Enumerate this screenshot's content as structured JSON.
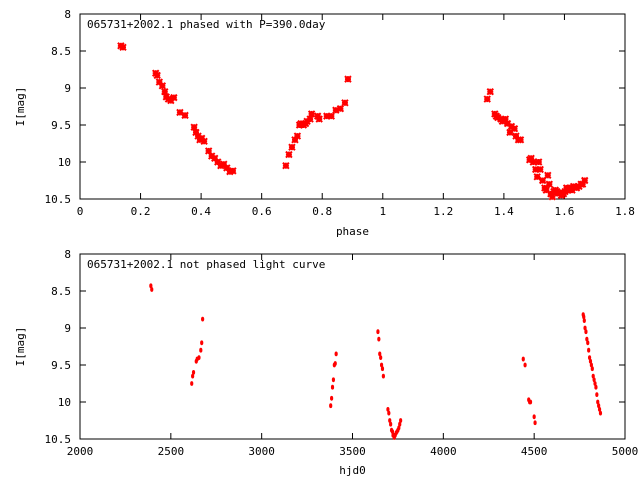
{
  "colors": {
    "points": "#ff0000",
    "axes": "#000000",
    "background": "#ffffff"
  },
  "chart_data": [
    {
      "type": "scatter",
      "title": "065731+2002.1 phased with P=390.0day",
      "xlabel": "phase",
      "ylabel": "I[mag]",
      "xlim": [
        0,
        1.8
      ],
      "ylim": [
        8,
        10.5
      ],
      "y_inverted": true,
      "grid": false,
      "marker": "cross",
      "xticks": [
        "0",
        "0.2",
        "0.4",
        "0.6",
        "0.8",
        "1",
        "1.2",
        "1.4",
        "1.6",
        "1.8"
      ],
      "yticks": [
        "8",
        "8.5",
        "9",
        "9.5",
        "10",
        "10.5"
      ],
      "points": [
        [
          0.135,
          8.43
        ],
        [
          0.142,
          8.45
        ],
        [
          0.25,
          8.8
        ],
        [
          0.255,
          8.83
        ],
        [
          0.262,
          8.92
        ],
        [
          0.272,
          8.97
        ],
        [
          0.28,
          9.05
        ],
        [
          0.285,
          9.12
        ],
        [
          0.292,
          9.15
        ],
        [
          0.3,
          9.17
        ],
        [
          0.31,
          9.13
        ],
        [
          0.33,
          9.33
        ],
        [
          0.347,
          9.37
        ],
        [
          0.377,
          9.53
        ],
        [
          0.383,
          9.6
        ],
        [
          0.39,
          9.65
        ],
        [
          0.396,
          9.7
        ],
        [
          0.402,
          9.68
        ],
        [
          0.41,
          9.72
        ],
        [
          0.425,
          9.85
        ],
        [
          0.435,
          9.92
        ],
        [
          0.445,
          9.95
        ],
        [
          0.455,
          10.0
        ],
        [
          0.465,
          10.05
        ],
        [
          0.475,
          10.03
        ],
        [
          0.485,
          10.08
        ],
        [
          0.495,
          10.13
        ],
        [
          0.505,
          10.12
        ],
        [
          0.68,
          10.05
        ],
        [
          0.69,
          9.9
        ],
        [
          0.7,
          9.8
        ],
        [
          0.71,
          9.7
        ],
        [
          0.718,
          9.65
        ],
        [
          0.725,
          9.5
        ],
        [
          0.73,
          9.48
        ],
        [
          0.738,
          9.5
        ],
        [
          0.745,
          9.48
        ],
        [
          0.75,
          9.45
        ],
        [
          0.76,
          9.42
        ],
        [
          0.765,
          9.35
        ],
        [
          0.785,
          9.38
        ],
        [
          0.79,
          9.42
        ],
        [
          0.815,
          9.38
        ],
        [
          0.83,
          9.38
        ],
        [
          0.845,
          9.3
        ],
        [
          0.86,
          9.28
        ],
        [
          0.875,
          9.2
        ],
        [
          0.885,
          8.88
        ],
        [
          1.345,
          9.15
        ],
        [
          1.355,
          9.05
        ],
        [
          1.37,
          9.35
        ],
        [
          1.375,
          9.38
        ],
        [
          1.38,
          9.4
        ],
        [
          1.39,
          9.42
        ],
        [
          1.395,
          9.45
        ],
        [
          1.405,
          9.42
        ],
        [
          1.412,
          9.48
        ],
        [
          1.42,
          9.6
        ],
        [
          1.425,
          9.52
        ],
        [
          1.435,
          9.55
        ],
        [
          1.44,
          9.65
        ],
        [
          1.448,
          9.7
        ],
        [
          1.455,
          9.7
        ],
        [
          1.485,
          9.97
        ],
        [
          1.49,
          9.95
        ],
        [
          1.497,
          10.0
        ],
        [
          1.505,
          10.1
        ],
        [
          1.51,
          10.2
        ],
        [
          1.515,
          10.0
        ],
        [
          1.52,
          10.1
        ],
        [
          1.528,
          10.25
        ],
        [
          1.535,
          10.35
        ],
        [
          1.54,
          10.38
        ],
        [
          1.545,
          10.18
        ],
        [
          1.55,
          10.3
        ],
        [
          1.555,
          10.43
        ],
        [
          1.56,
          10.47
        ],
        [
          1.565,
          10.4
        ],
        [
          1.57,
          10.38
        ],
        [
          1.575,
          10.4
        ],
        [
          1.58,
          10.42
        ],
        [
          1.585,
          10.42
        ],
        [
          1.59,
          10.45
        ],
        [
          1.597,
          10.43
        ],
        [
          1.602,
          10.4
        ],
        [
          1.607,
          10.35
        ],
        [
          1.612,
          10.38
        ],
        [
          1.618,
          10.35
        ],
        [
          1.625,
          10.38
        ],
        [
          1.63,
          10.33
        ],
        [
          1.64,
          10.35
        ],
        [
          1.648,
          10.33
        ],
        [
          1.655,
          10.3
        ],
        [
          1.66,
          10.3
        ],
        [
          1.667,
          10.25
        ]
      ]
    },
    {
      "type": "scatter",
      "title": "065731+2002.1 not phased light curve",
      "xlabel": "hjd0",
      "ylabel": "I[mag]",
      "xlim": [
        2000,
        5000
      ],
      "ylim": [
        8,
        10.5
      ],
      "y_inverted": true,
      "grid": false,
      "marker": "dot",
      "xticks": [
        "2000",
        "2500",
        "3000",
        "3500",
        "4000",
        "4500",
        "5000"
      ],
      "yticks": [
        "8",
        "8.5",
        "9",
        "9.5",
        "10",
        "10.5"
      ],
      "points": [
        [
          2390,
          8.43
        ],
        [
          2395,
          8.48
        ],
        [
          2615,
          9.75
        ],
        [
          2620,
          9.65
        ],
        [
          2625,
          9.6
        ],
        [
          2640,
          9.45
        ],
        [
          2645,
          9.42
        ],
        [
          2655,
          9.4
        ],
        [
          2665,
          9.3
        ],
        [
          2670,
          9.2
        ],
        [
          2675,
          8.88
        ],
        [
          3380,
          10.05
        ],
        [
          3385,
          9.95
        ],
        [
          3390,
          9.8
        ],
        [
          3395,
          9.7
        ],
        [
          3400,
          9.5
        ],
        [
          3405,
          9.48
        ],
        [
          3410,
          9.35
        ],
        [
          3640,
          9.05
        ],
        [
          3645,
          9.15
        ],
        [
          3650,
          9.35
        ],
        [
          3655,
          9.4
        ],
        [
          3660,
          9.5
        ],
        [
          3665,
          9.55
        ],
        [
          3670,
          9.65
        ],
        [
          3695,
          10.1
        ],
        [
          3700,
          10.15
        ],
        [
          3705,
          10.25
        ],
        [
          3710,
          10.3
        ],
        [
          3715,
          10.38
        ],
        [
          3720,
          10.4
        ],
        [
          3723,
          10.45
        ],
        [
          3727,
          10.45
        ],
        [
          3730,
          10.48
        ],
        [
          3735,
          10.45
        ],
        [
          3740,
          10.42
        ],
        [
          3745,
          10.4
        ],
        [
          3750,
          10.38
        ],
        [
          3755,
          10.35
        ],
        [
          3760,
          10.3
        ],
        [
          3765,
          10.25
        ],
        [
          4440,
          9.42
        ],
        [
          4450,
          9.5
        ],
        [
          4470,
          9.97
        ],
        [
          4475,
          10.0
        ],
        [
          4480,
          10.0
        ],
        [
          4500,
          10.2
        ],
        [
          4505,
          10.28
        ],
        [
          4770,
          8.82
        ],
        [
          4773,
          8.85
        ],
        [
          4776,
          8.9
        ],
        [
          4780,
          9.0
        ],
        [
          4785,
          9.05
        ],
        [
          4790,
          9.15
        ],
        [
          4795,
          9.2
        ],
        [
          4800,
          9.3
        ],
        [
          4805,
          9.4
        ],
        [
          4810,
          9.45
        ],
        [
          4815,
          9.5
        ],
        [
          4820,
          9.55
        ],
        [
          4825,
          9.65
        ],
        [
          4830,
          9.7
        ],
        [
          4835,
          9.75
        ],
        [
          4840,
          9.8
        ],
        [
          4845,
          9.9
        ],
        [
          4850,
          10.0
        ],
        [
          4855,
          10.05
        ],
        [
          4860,
          10.1
        ],
        [
          4865,
          10.15
        ]
      ]
    }
  ]
}
